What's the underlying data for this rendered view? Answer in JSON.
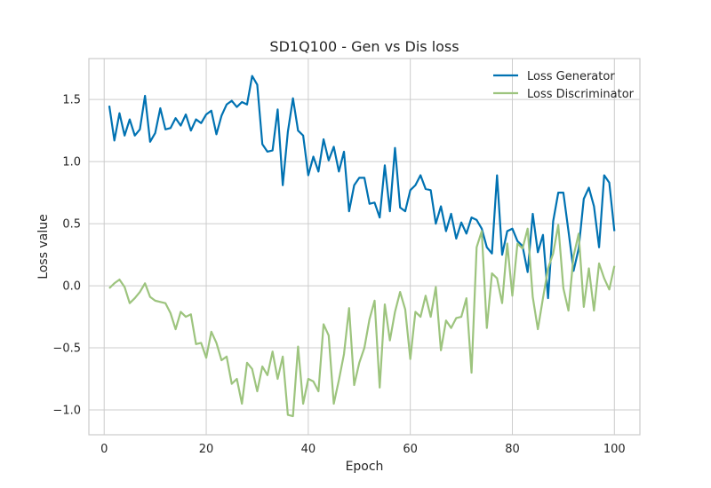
{
  "chart_data": {
    "type": "line",
    "title": "SD1Q100 - Gen vs Dis loss",
    "xlabel": "Epoch",
    "ylabel": "Loss value",
    "xlim": [
      -3,
      105
    ],
    "ylim": [
      -1.2,
      1.83
    ],
    "xticks": [
      0,
      20,
      40,
      60,
      80,
      100
    ],
    "yticks": [
      -1.0,
      -0.5,
      0.0,
      0.5,
      1.0,
      1.5
    ],
    "ytick_labels": [
      "−1.0",
      "−0.5",
      "0.0",
      "0.5",
      "1.0",
      "1.5"
    ],
    "grid": true,
    "legend_position": "top-right",
    "series": [
      {
        "name": "Loss Generator",
        "color": "#0072B2",
        "x": [
          1,
          2,
          3,
          4,
          5,
          6,
          7,
          8,
          9,
          10,
          11,
          12,
          13,
          14,
          15,
          16,
          17,
          18,
          19,
          20,
          21,
          22,
          23,
          24,
          25,
          26,
          27,
          28,
          29,
          30,
          31,
          32,
          33,
          34,
          35,
          36,
          37,
          38,
          39,
          40,
          41,
          42,
          43,
          44,
          45,
          46,
          47,
          48,
          49,
          50,
          51,
          52,
          53,
          54,
          55,
          56,
          57,
          58,
          59,
          60,
          61,
          62,
          63,
          64,
          65,
          66,
          67,
          68,
          69,
          70,
          71,
          72,
          73,
          74,
          75,
          76,
          77,
          78,
          79,
          80,
          81,
          82,
          83,
          84,
          85,
          86,
          87,
          88,
          89,
          90,
          91,
          92,
          93,
          94,
          95,
          96,
          97,
          98,
          99,
          100
        ],
        "y": [
          1.45,
          1.17,
          1.39,
          1.21,
          1.34,
          1.21,
          1.26,
          1.53,
          1.16,
          1.23,
          1.43,
          1.26,
          1.27,
          1.35,
          1.29,
          1.38,
          1.25,
          1.34,
          1.31,
          1.38,
          1.41,
          1.22,
          1.37,
          1.46,
          1.49,
          1.44,
          1.48,
          1.46,
          1.69,
          1.62,
          1.14,
          1.08,
          1.09,
          1.42,
          0.81,
          1.24,
          1.51,
          1.25,
          1.21,
          0.89,
          1.04,
          0.92,
          1.18,
          1.01,
          1.12,
          0.92,
          1.08,
          0.6,
          0.81,
          0.87,
          0.87,
          0.66,
          0.67,
          0.55,
          0.97,
          0.6,
          1.11,
          0.63,
          0.6,
          0.77,
          0.81,
          0.89,
          0.78,
          0.77,
          0.5,
          0.64,
          0.44,
          0.58,
          0.38,
          0.51,
          0.42,
          0.55,
          0.53,
          0.46,
          0.31,
          0.26,
          0.89,
          0.25,
          0.44,
          0.46,
          0.36,
          0.32,
          0.11,
          0.58,
          0.27,
          0.41,
          -0.1,
          0.52,
          0.75,
          0.75,
          0.44,
          0.12,
          0.3,
          0.7,
          0.79,
          0.64,
          0.31,
          0.89,
          0.83,
          0.44
        ]
      },
      {
        "name": "Loss Discriminator",
        "color": "#9DC47E",
        "x": [
          1,
          2,
          3,
          4,
          5,
          6,
          7,
          8,
          9,
          10,
          11,
          12,
          13,
          14,
          15,
          16,
          17,
          18,
          19,
          20,
          21,
          22,
          23,
          24,
          25,
          26,
          27,
          28,
          29,
          30,
          31,
          32,
          33,
          34,
          35,
          36,
          37,
          38,
          39,
          40,
          41,
          42,
          43,
          44,
          45,
          46,
          47,
          48,
          49,
          50,
          51,
          52,
          53,
          54,
          55,
          56,
          57,
          58,
          59,
          60,
          61,
          62,
          63,
          64,
          65,
          66,
          67,
          68,
          69,
          70,
          71,
          72,
          73,
          74,
          75,
          76,
          77,
          78,
          79,
          80,
          81,
          82,
          83,
          84,
          85,
          86,
          87,
          88,
          89,
          90,
          91,
          92,
          93,
          94,
          95,
          96,
          97,
          98,
          99,
          100
        ],
        "y": [
          -0.02,
          0.02,
          0.05,
          -0.01,
          -0.14,
          -0.1,
          -0.05,
          0.02,
          -0.09,
          -0.12,
          -0.13,
          -0.14,
          -0.22,
          -0.35,
          -0.21,
          -0.25,
          -0.23,
          -0.47,
          -0.46,
          -0.58,
          -0.37,
          -0.46,
          -0.6,
          -0.57,
          -0.79,
          -0.75,
          -0.95,
          -0.62,
          -0.67,
          -0.85,
          -0.65,
          -0.72,
          -0.53,
          -0.75,
          -0.57,
          -1.04,
          -1.05,
          -0.49,
          -0.95,
          -0.75,
          -0.77,
          -0.85,
          -0.31,
          -0.4,
          -0.95,
          -0.76,
          -0.55,
          -0.18,
          -0.8,
          -0.62,
          -0.5,
          -0.27,
          -0.12,
          -0.82,
          -0.15,
          -0.44,
          -0.21,
          -0.05,
          -0.19,
          -0.59,
          -0.21,
          -0.25,
          -0.08,
          -0.25,
          -0.01,
          -0.52,
          -0.28,
          -0.34,
          -0.26,
          -0.25,
          -0.1,
          -0.7,
          0.31,
          0.44,
          -0.34,
          0.1,
          0.06,
          -0.14,
          0.34,
          -0.08,
          0.34,
          0.3,
          0.46,
          -0.09,
          -0.35,
          -0.1,
          0.14,
          0.26,
          0.49,
          -0.02,
          -0.2,
          0.24,
          0.42,
          -0.17,
          0.14,
          -0.2,
          0.18,
          0.06,
          -0.03,
          0.16
        ]
      }
    ]
  }
}
